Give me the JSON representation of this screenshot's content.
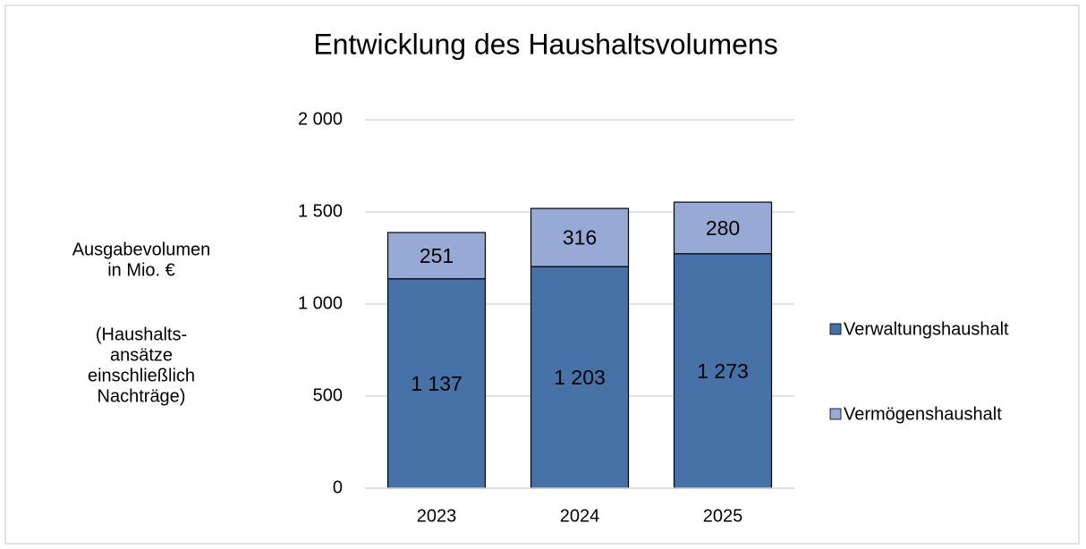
{
  "chart_data": {
    "type": "stacked_bar",
    "title": "Entwicklung des Haushaltsvolumens",
    "ylabel": [
      "Ausgabevolumen",
      "in Mio. €",
      "(Haushalts-",
      "ansätze",
      "einschließlich",
      "Nachträge)"
    ],
    "categories": [
      "2023",
      "2024",
      "2025"
    ],
    "series": [
      {
        "name": "Verwaltungshaushalt",
        "color": "#4672a7",
        "values": [
          1137,
          1203,
          1273
        ],
        "value_labels": [
          "1 137",
          "1 203",
          "1 273"
        ]
      },
      {
        "name": "Vermögenshaushalt",
        "color": "#97aad5",
        "values": [
          251,
          316,
          280
        ]
      }
    ],
    "ylim": [
      0,
      2000
    ],
    "yticks": [
      0,
      500,
      {
        "value": 1000,
        "label": "1 000"
      },
      {
        "value": 1500,
        "label": "1 500"
      },
      {
        "value": 2000,
        "label": "2 000"
      }
    ],
    "grid": true,
    "legend": "right"
  }
}
